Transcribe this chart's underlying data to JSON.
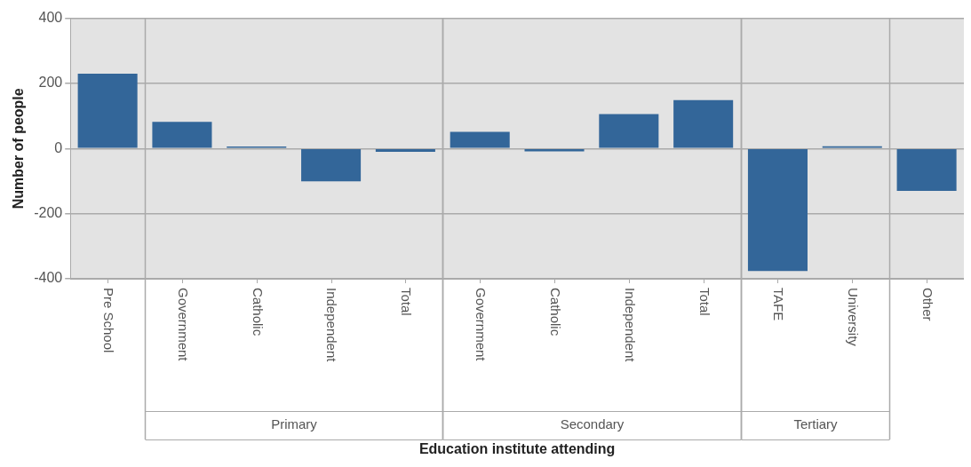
{
  "chart_data": {
    "type": "bar",
    "ylabel": "Number of people",
    "categories": [
      "Pre School",
      "Government",
      "Catholic",
      "Independent",
      "Total",
      "Government",
      "Catholic",
      "Independent",
      "Total",
      "TAFE",
      "University",
      "Other"
    ],
    "values": [
      230,
      82,
      6,
      -101,
      -10,
      51,
      -9,
      106,
      149,
      -376,
      7,
      -130
    ],
    "color": "#336699",
    "ylim": [
      -400,
      400
    ],
    "yticks": [
      -400,
      -200,
      0,
      200,
      400
    ],
    "grid": "y",
    "annotations": [
      "Primary",
      "Secondary",
      "Tertiary",
      "Education institute attending"
    ]
  }
}
